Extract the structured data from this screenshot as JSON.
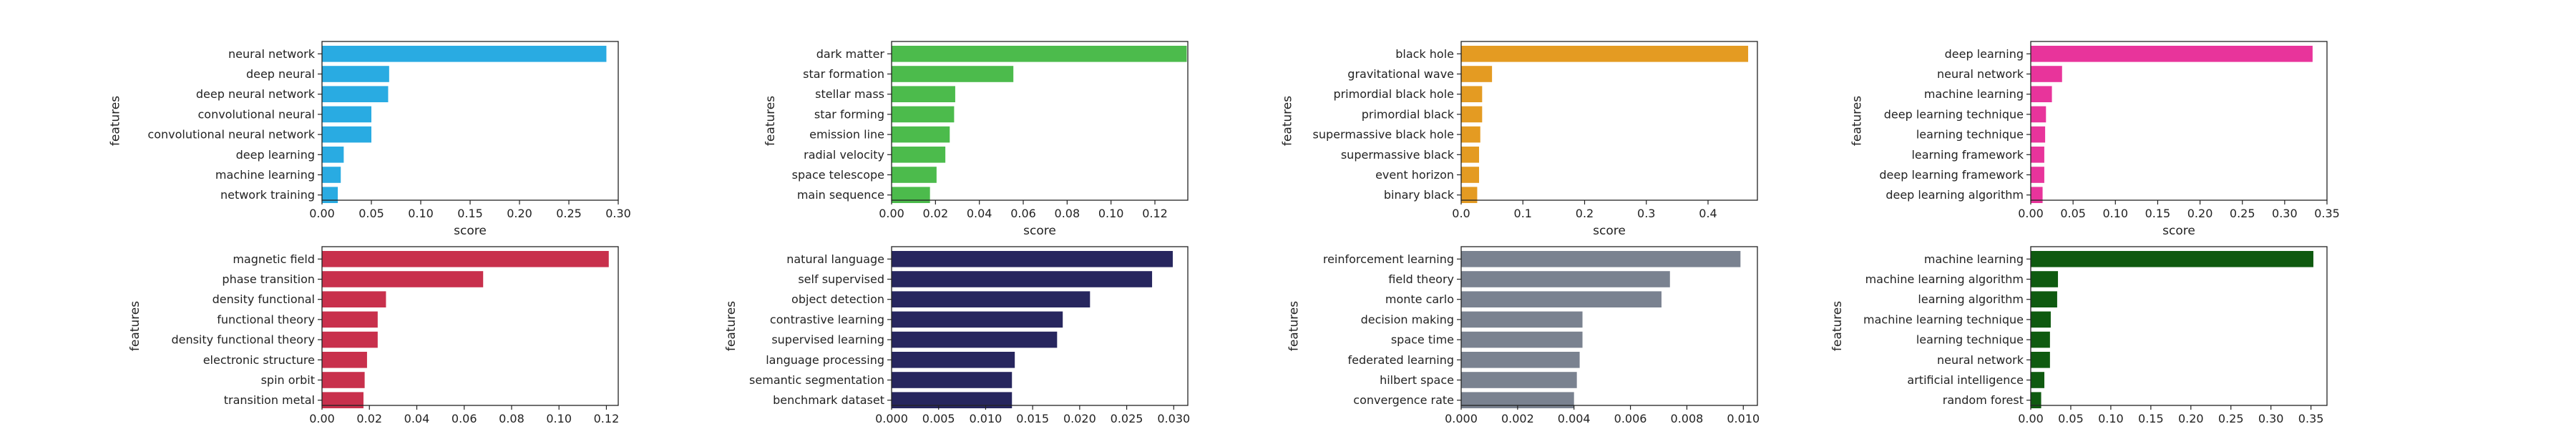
{
  "chart_data": [
    {
      "type": "bar",
      "orientation": "horizontal",
      "color": "#29abe2",
      "xlabel": "score",
      "ylabel": "features",
      "xlim": [
        0,
        0.3
      ],
      "xticks": [
        0,
        0.05,
        0.1,
        0.15,
        0.2,
        0.25,
        0.3
      ],
      "xtick_labels": [
        "0.00",
        "0.05",
        "0.10",
        "0.15",
        "0.20",
        "0.25",
        "0.30"
      ],
      "categories": [
        "neural network",
        "deep neural",
        "deep neural network",
        "convolutional neural",
        "convolutional neural network",
        "deep learning",
        "machine learning",
        "network training"
      ],
      "values": [
        0.288,
        0.068,
        0.067,
        0.05,
        0.05,
        0.022,
        0.019,
        0.016
      ]
    },
    {
      "type": "bar",
      "orientation": "horizontal",
      "color": "#4cbb4c",
      "xlabel": "score",
      "ylabel": "features",
      "xlim": [
        0,
        0.135
      ],
      "xticks": [
        0,
        0.02,
        0.04,
        0.06,
        0.08,
        0.1,
        0.12
      ],
      "xtick_labels": [
        "0.00",
        "0.02",
        "0.04",
        "0.06",
        "0.08",
        "0.10",
        "0.12"
      ],
      "categories": [
        "dark matter",
        "star formation",
        "stellar mass",
        "star forming",
        "emission line",
        "radial velocity",
        "space telescope",
        "main sequence"
      ],
      "values": [
        0.1345,
        0.0555,
        0.029,
        0.0285,
        0.0265,
        0.0245,
        0.0205,
        0.0175
      ]
    },
    {
      "type": "bar",
      "orientation": "horizontal",
      "color": "#e49b22",
      "xlabel": "score",
      "ylabel": "features",
      "xlim": [
        0,
        0.48
      ],
      "xticks": [
        0,
        0.1,
        0.2,
        0.3,
        0.4
      ],
      "xtick_labels": [
        "0.0",
        "0.1",
        "0.2",
        "0.3",
        "0.4"
      ],
      "categories": [
        "black hole",
        "gravitational wave",
        "primordial black hole",
        "primordial black",
        "supermassive black hole",
        "supermassive black",
        "event horizon",
        "binary black"
      ],
      "values": [
        0.465,
        0.05,
        0.034,
        0.034,
        0.031,
        0.029,
        0.029,
        0.026
      ]
    },
    {
      "type": "bar",
      "orientation": "horizontal",
      "color": "#e8349b",
      "xlabel": "score",
      "ylabel": "features",
      "xlim": [
        0,
        0.35
      ],
      "xticks": [
        0,
        0.05,
        0.1,
        0.15,
        0.2,
        0.25,
        0.3,
        0.35
      ],
      "xtick_labels": [
        "0.00",
        "0.05",
        "0.10",
        "0.15",
        "0.20",
        "0.25",
        "0.30",
        "0.35"
      ],
      "categories": [
        "deep learning",
        "neural network",
        "machine learning",
        "deep learning technique",
        "learning technique",
        "learning framework",
        "deep learning framework",
        "deep learning algorithm"
      ],
      "values": [
        0.333,
        0.037,
        0.025,
        0.018,
        0.017,
        0.016,
        0.016,
        0.014
      ]
    },
    {
      "type": "bar",
      "orientation": "horizontal",
      "color": "#c8304c",
      "xlabel": "score",
      "ylabel": "features",
      "xlim": [
        0,
        0.125
      ],
      "xticks": [
        0,
        0.02,
        0.04,
        0.06,
        0.08,
        0.1,
        0.12
      ],
      "xtick_labels": [
        "0.00",
        "0.02",
        "0.04",
        "0.06",
        "0.08",
        "0.10",
        "0.12"
      ],
      "categories": [
        "magnetic field",
        "phase transition",
        "density functional",
        "functional theory",
        "density functional theory",
        "electronic structure",
        "spin orbit",
        "transition metal"
      ],
      "values": [
        0.121,
        0.068,
        0.027,
        0.0235,
        0.0235,
        0.019,
        0.018,
        0.0175
      ]
    },
    {
      "type": "bar",
      "orientation": "horizontal",
      "color": "#27265e",
      "xlabel": "",
      "ylabel": "features",
      "xlim": [
        0,
        0.0315
      ],
      "xticks": [
        0,
        0.005,
        0.01,
        0.015,
        0.02,
        0.025,
        0.03
      ],
      "xtick_labels": [
        "0.000",
        "0.005",
        "0.010",
        "0.015",
        "0.020",
        "0.025",
        "0.030"
      ],
      "categories": [
        "natural language",
        "self supervised",
        "object detection",
        "contrastive learning",
        "supervised learning",
        "language processing",
        "semantic segmentation",
        "benchmark dataset"
      ],
      "values": [
        0.0299,
        0.0277,
        0.0211,
        0.0182,
        0.0176,
        0.0131,
        0.0128,
        0.0128
      ]
    },
    {
      "type": "bar",
      "orientation": "horizontal",
      "color": "#7a8290",
      "xlabel": "",
      "ylabel": "features",
      "xlim": [
        0,
        0.0105
      ],
      "xticks": [
        0,
        0.002,
        0.004,
        0.006,
        0.008,
        0.01
      ],
      "xtick_labels": [
        "0.000",
        "0.002",
        "0.004",
        "0.006",
        "0.008",
        "0.010"
      ],
      "categories": [
        "reinforcement learning",
        "field theory",
        "monte carlo",
        "decision making",
        "space time",
        "federated learning",
        "hilbert space",
        "convergence rate"
      ],
      "values": [
        0.0099,
        0.0074,
        0.0071,
        0.0043,
        0.0043,
        0.0042,
        0.0041,
        0.004
      ]
    },
    {
      "type": "bar",
      "orientation": "horizontal",
      "color": "#0f5a10",
      "xlabel": "",
      "ylabel": "features",
      "xlim": [
        0,
        0.37
      ],
      "xticks": [
        0,
        0.05,
        0.1,
        0.15,
        0.2,
        0.25,
        0.3,
        0.35
      ],
      "xtick_labels": [
        "0.00",
        "0.05",
        "0.10",
        "0.15",
        "0.20",
        "0.25",
        "0.30",
        "0.35"
      ],
      "categories": [
        "machine learning",
        "machine learning algorithm",
        "learning algorithm",
        "machine learning technique",
        "learning technique",
        "neural network",
        "artificial intelligence",
        "random forest"
      ],
      "values": [
        0.353,
        0.034,
        0.033,
        0.025,
        0.024,
        0.024,
        0.017,
        0.013
      ]
    }
  ]
}
